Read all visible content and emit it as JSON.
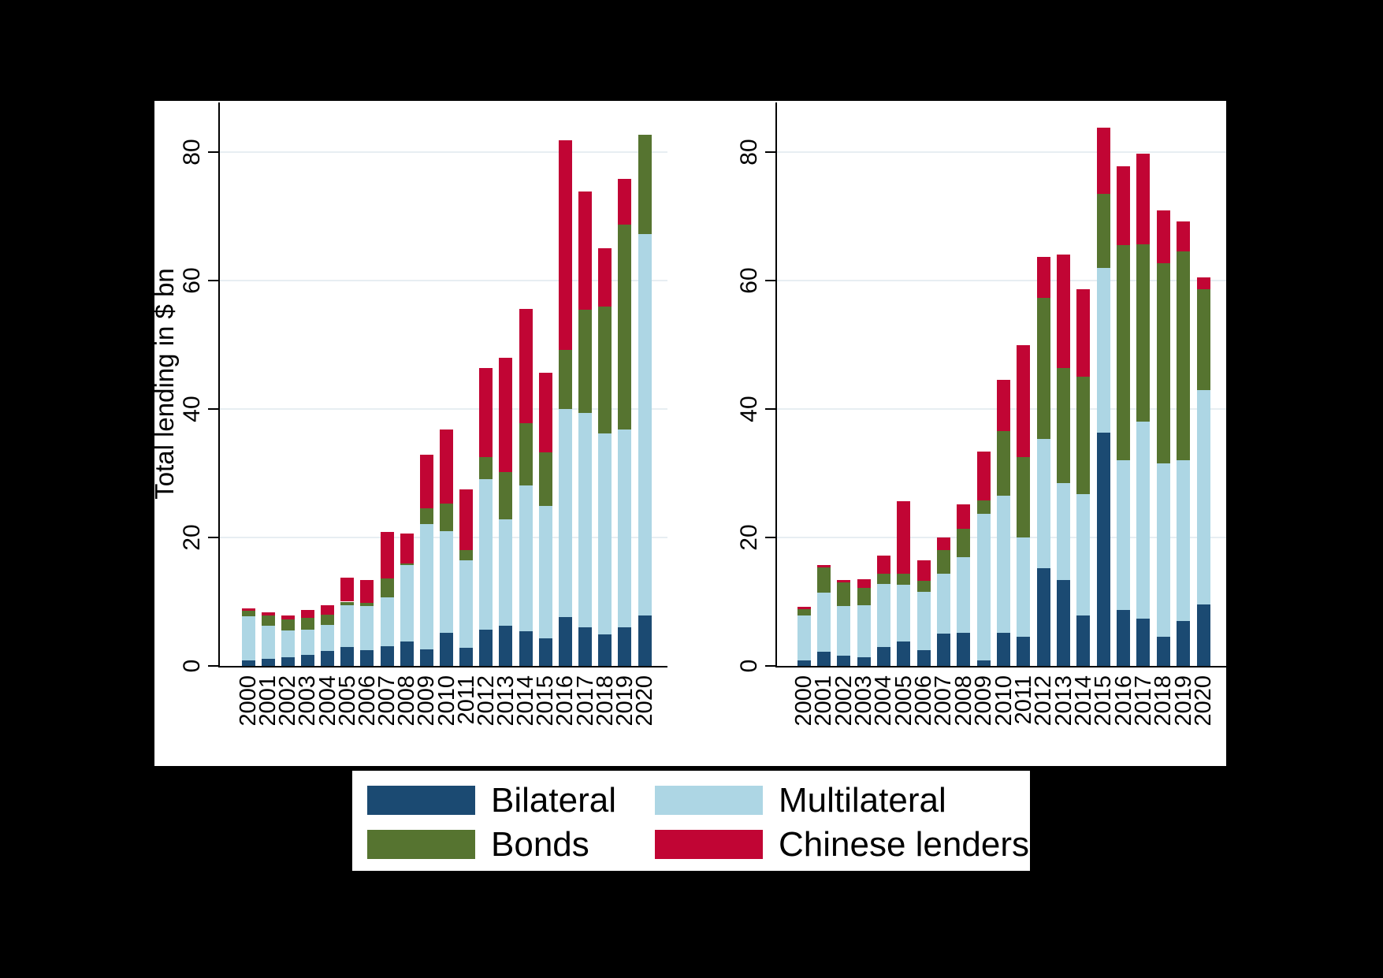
{
  "figure": {
    "background": "#000000",
    "panel_background": "#ffffff",
    "grid_color": "#e7eef2",
    "axis_color": "#000000",
    "y_axis_title": "Total lending in $ bn"
  },
  "legend": {
    "items": [
      {
        "label": "Bilateral",
        "color": "#1b4a72"
      },
      {
        "label": "Multilateral",
        "color": "#add6e4"
      },
      {
        "label": "Bonds",
        "color": "#567430"
      },
      {
        "label": "Chinese lenders",
        "color": "#c10534"
      }
    ]
  },
  "chart_data": [
    {
      "type": "bar",
      "stacked": true,
      "panel": "left",
      "title": "",
      "xlabel": "",
      "ylabel": "Total lending in $ bn",
      "ylim": [
        0,
        85
      ],
      "yticks": [
        0,
        20,
        40,
        60,
        80
      ],
      "grid": true,
      "legend_position": "bottom",
      "categories": [
        "2000",
        "2001",
        "2002",
        "2003",
        "2004",
        "2005",
        "2006",
        "2007",
        "2008",
        "2009",
        "2010",
        "2011",
        "2012",
        "2013",
        "2014",
        "2015",
        "2016",
        "2017",
        "2018",
        "2019",
        "2020"
      ],
      "series": [
        {
          "name": "Bilateral",
          "color": "#1b4a72",
          "values": [
            0.9,
            1.1,
            1.3,
            1.7,
            2.3,
            3.0,
            2.5,
            3.1,
            3.8,
            2.6,
            5.1,
            2.8,
            5.7,
            6.2,
            5.4,
            4.3,
            7.6,
            6.0,
            4.9,
            6.0,
            7.9
          ]
        },
        {
          "name": "Multilateral",
          "color": "#add6e4",
          "values": [
            6.8,
            5.2,
            4.2,
            3.9,
            4.1,
            6.5,
            6.8,
            7.6,
            11.9,
            19.5,
            15.9,
            13.7,
            23.4,
            16.6,
            22.7,
            20.6,
            32.4,
            33.4,
            31.3,
            30.8,
            59.3
          ]
        },
        {
          "name": "Bonds",
          "color": "#567430",
          "values": [
            0.9,
            1.6,
            1.7,
            1.9,
            1.6,
            0.5,
            0.5,
            2.9,
            0.3,
            2.5,
            4.3,
            1.5,
            3.4,
            7.4,
            9.7,
            8.4,
            9.2,
            16.0,
            19.8,
            31.9,
            15.5
          ]
        },
        {
          "name": "Chinese lenders",
          "color": "#c10534",
          "values": [
            0.4,
            0.5,
            0.6,
            1.2,
            1.4,
            3.8,
            3.6,
            7.3,
            4.6,
            8.3,
            11.5,
            9.5,
            13.9,
            17.8,
            17.8,
            12.4,
            32.6,
            18.5,
            9.0,
            7.1,
            0.0
          ]
        }
      ]
    },
    {
      "type": "bar",
      "stacked": true,
      "panel": "right",
      "title": "",
      "xlabel": "",
      "ylabel": "",
      "ylim": [
        0,
        85
      ],
      "yticks": [
        0,
        20,
        40,
        60,
        80
      ],
      "grid": true,
      "legend_position": "bottom",
      "categories": [
        "2000",
        "2001",
        "2002",
        "2003",
        "2004",
        "2005",
        "2006",
        "2007",
        "2008",
        "2009",
        "2010",
        "2011",
        "2012",
        "2013",
        "2014",
        "2015",
        "2016",
        "2017",
        "2018",
        "2019",
        "2020"
      ],
      "series": [
        {
          "name": "Bilateral",
          "color": "#1b4a72",
          "values": [
            0.8,
            2.2,
            1.6,
            1.4,
            2.9,
            3.8,
            2.5,
            5.0,
            5.1,
            0.8,
            5.2,
            4.6,
            15.2,
            13.4,
            7.9,
            36.3,
            8.7,
            7.4,
            4.6,
            7.0,
            9.6
          ]
        },
        {
          "name": "Multilateral",
          "color": "#add6e4",
          "values": [
            7.0,
            9.2,
            7.7,
            8.0,
            9.8,
            8.8,
            9.0,
            9.3,
            11.8,
            22.9,
            21.3,
            15.4,
            20.1,
            15.1,
            18.8,
            25.7,
            23.3,
            30.6,
            26.9,
            25.0,
            33.4
          ]
        },
        {
          "name": "Bonds",
          "color": "#567430",
          "values": [
            1.0,
            3.9,
            3.7,
            2.8,
            1.6,
            1.8,
            1.8,
            3.7,
            4.5,
            2.1,
            10.1,
            12.5,
            22.0,
            17.9,
            18.3,
            11.5,
            33.5,
            27.7,
            31.2,
            32.5,
            15.6
          ]
        },
        {
          "name": "Chinese lenders",
          "color": "#c10534",
          "values": [
            0.4,
            0.4,
            0.4,
            1.3,
            2.9,
            11.3,
            3.2,
            2.0,
            3.8,
            7.6,
            7.9,
            17.5,
            6.4,
            17.6,
            13.6,
            10.3,
            12.3,
            14.0,
            8.2,
            4.7,
            1.9
          ]
        }
      ]
    }
  ]
}
